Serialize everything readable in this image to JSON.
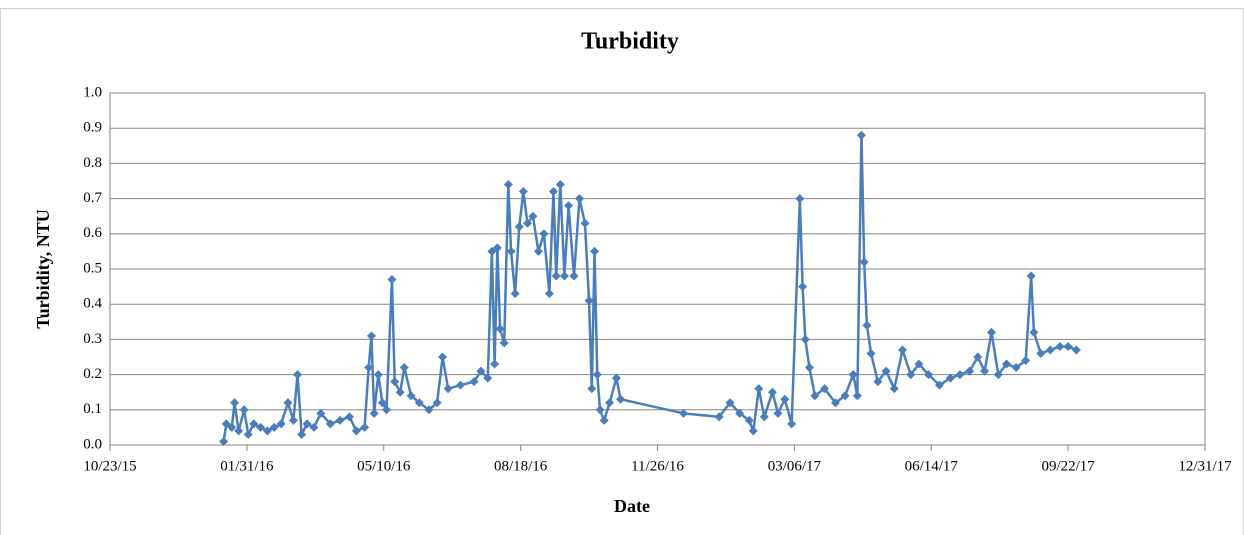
{
  "chart_data": {
    "type": "line",
    "title": "Turbidity",
    "x_label": "Date",
    "y_label": "Turbidity, NTU",
    "x": [
      "2016-01-14",
      "2016-01-16",
      "2016-01-20",
      "2016-01-22",
      "2016-01-25",
      "2016-01-29",
      "2016-02-01",
      "2016-02-05",
      "2016-02-10",
      "2016-02-15",
      "2016-02-20",
      "2016-02-25",
      "2016-03-01",
      "2016-03-05",
      "2016-03-08",
      "2016-03-11",
      "2016-03-15",
      "2016-03-20",
      "2016-03-25",
      "2016-04-01",
      "2016-04-08",
      "2016-04-15",
      "2016-04-20",
      "2016-04-26",
      "2016-04-29",
      "2016-05-01",
      "2016-05-03",
      "2016-05-06",
      "2016-05-09",
      "2016-05-12",
      "2016-05-16",
      "2016-05-18",
      "2016-05-22",
      "2016-05-25",
      "2016-05-30",
      "2016-06-05",
      "2016-06-12",
      "2016-06-18",
      "2016-06-22",
      "2016-06-26",
      "2016-07-05",
      "2016-07-15",
      "2016-07-20",
      "2016-07-25",
      "2016-07-28",
      "2016-07-30",
      "2016-08-01",
      "2016-08-03",
      "2016-08-06",
      "2016-08-09",
      "2016-08-11",
      "2016-08-14",
      "2016-08-17",
      "2016-08-20",
      "2016-08-23",
      "2016-08-27",
      "2016-08-31",
      "2016-09-04",
      "2016-09-08",
      "2016-09-11",
      "2016-09-13",
      "2016-09-16",
      "2016-09-19",
      "2016-09-22",
      "2016-09-26",
      "2016-09-30",
      "2016-10-04",
      "2016-10-07",
      "2016-10-09",
      "2016-10-11",
      "2016-10-13",
      "2016-10-15",
      "2016-10-18",
      "2016-10-22",
      "2016-10-27",
      "2016-10-30",
      "2016-12-15",
      "2017-01-10",
      "2017-01-18",
      "2017-01-25",
      "2017-02-01",
      "2017-02-04",
      "2017-02-08",
      "2017-02-12",
      "2017-02-18",
      "2017-02-22",
      "2017-02-27",
      "2017-03-04",
      "2017-03-10",
      "2017-03-12",
      "2017-03-14",
      "2017-03-17",
      "2017-03-21",
      "2017-03-28",
      "2017-04-05",
      "2017-04-12",
      "2017-04-18",
      "2017-04-21",
      "2017-04-24",
      "2017-04-26",
      "2017-04-28",
      "2017-05-01",
      "2017-05-06",
      "2017-05-12",
      "2017-05-18",
      "2017-05-24",
      "2017-05-30",
      "2017-06-05",
      "2017-06-12",
      "2017-06-20",
      "2017-06-28",
      "2017-07-05",
      "2017-07-12",
      "2017-07-18",
      "2017-07-23",
      "2017-07-28",
      "2017-08-02",
      "2017-08-08",
      "2017-08-15",
      "2017-08-22",
      "2017-08-26",
      "2017-08-28",
      "2017-09-02",
      "2017-09-09",
      "2017-09-16",
      "2017-09-22",
      "2017-09-28"
    ],
    "series": [
      {
        "name": "Turbidity",
        "color": "#4a7ebb",
        "values": [
          0.01,
          0.06,
          0.05,
          0.12,
          0.04,
          0.1,
          0.03,
          0.06,
          0.05,
          0.04,
          0.05,
          0.06,
          0.12,
          0.07,
          0.2,
          0.03,
          0.06,
          0.05,
          0.09,
          0.06,
          0.07,
          0.08,
          0.04,
          0.05,
          0.22,
          0.31,
          0.09,
          0.2,
          0.12,
          0.1,
          0.47,
          0.18,
          0.15,
          0.22,
          0.14,
          0.12,
          0.1,
          0.12,
          0.25,
          0.16,
          0.17,
          0.18,
          0.21,
          0.19,
          0.55,
          0.23,
          0.56,
          0.33,
          0.29,
          0.74,
          0.55,
          0.43,
          0.62,
          0.72,
          0.63,
          0.65,
          0.55,
          0.6,
          0.43,
          0.72,
          0.48,
          0.74,
          0.48,
          0.68,
          0.48,
          0.7,
          0.63,
          0.41,
          0.16,
          0.55,
          0.2,
          0.1,
          0.07,
          0.12,
          0.19,
          0.13,
          0.09,
          0.08,
          0.12,
          0.09,
          0.07,
          0.04,
          0.16,
          0.08,
          0.15,
          0.09,
          0.13,
          0.06,
          0.7,
          0.45,
          0.3,
          0.22,
          0.14,
          0.16,
          0.12,
          0.14,
          0.2,
          0.14,
          0.88,
          0.52,
          0.34,
          0.26,
          0.18,
          0.21,
          0.16,
          0.27,
          0.2,
          0.23,
          0.2,
          0.17,
          0.19,
          0.2,
          0.21,
          0.25,
          0.21,
          0.32,
          0.2,
          0.23,
          0.22,
          0.24,
          0.48,
          0.32,
          0.26,
          0.27,
          0.28,
          0.28,
          0.27
        ]
      }
    ],
    "xlim": [
      "2015-10-23",
      "2017-12-31"
    ],
    "xticks": [
      {
        "value": "2015-10-23",
        "label": "10/23/15"
      },
      {
        "value": "2016-01-31",
        "label": "01/31/16"
      },
      {
        "value": "2016-05-10",
        "label": "05/10/16"
      },
      {
        "value": "2016-08-18",
        "label": "08/18/16"
      },
      {
        "value": "2016-11-26",
        "label": "11/26/16"
      },
      {
        "value": "2017-03-06",
        "label": "03/06/17"
      },
      {
        "value": "2017-06-14",
        "label": "06/14/17"
      },
      {
        "value": "2017-09-22",
        "label": "09/22/17"
      },
      {
        "value": "2017-12-31",
        "label": "12/31/17"
      }
    ],
    "ylim": [
      0,
      1
    ],
    "yticks": [
      {
        "value": 0,
        "label": "0.0"
      },
      0.1,
      0.2,
      0.3,
      0.4,
      0.5,
      0.6,
      0.7,
      0.8,
      0.9,
      {
        "value": 1,
        "label": "1.0"
      }
    ],
    "grid": true
  }
}
